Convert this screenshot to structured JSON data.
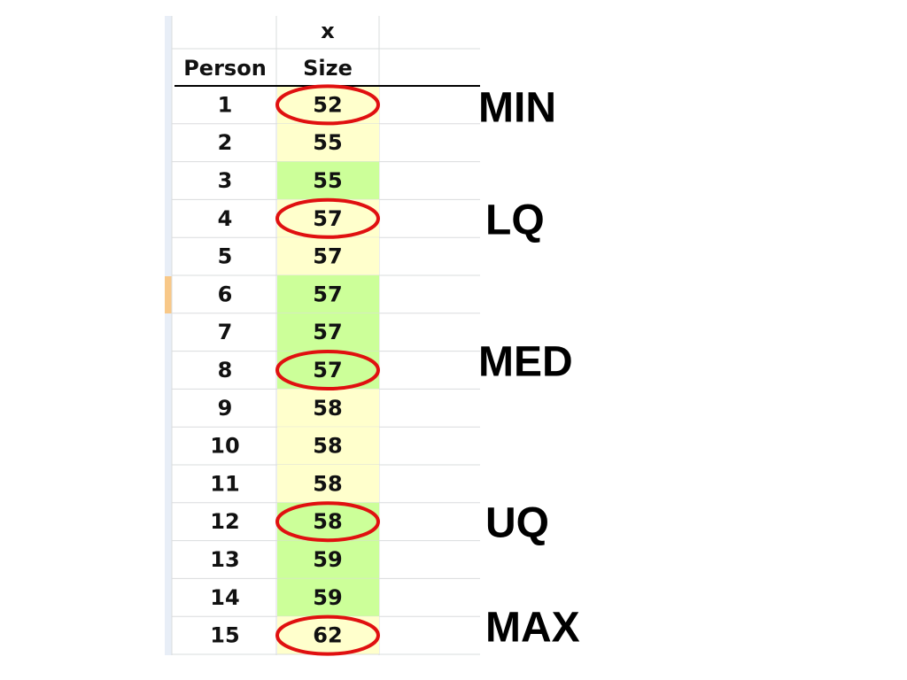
{
  "table": {
    "top_header": "x",
    "headers": [
      "Person",
      "Size"
    ],
    "rows": [
      [
        "1",
        "52"
      ],
      [
        "2",
        "55"
      ],
      [
        "3",
        "55"
      ],
      [
        "4",
        "57"
      ],
      [
        "5",
        "57"
      ],
      [
        "6",
        "57"
      ],
      [
        "7",
        "57"
      ],
      [
        "8",
        "57"
      ],
      [
        "9",
        "58"
      ],
      [
        "10",
        "58"
      ],
      [
        "11",
        "58"
      ],
      [
        "12",
        "58"
      ],
      [
        "13",
        "59"
      ],
      [
        "14",
        "59"
      ],
      [
        "15",
        "62"
      ]
    ],
    "fills": [
      "#ffffcc",
      "#ffffcc",
      "#ccff99",
      "#ffffcc",
      "#ffffcc",
      "#ccff99",
      "#ccff99",
      "#ccff99",
      "#ffffcc",
      "#ffffcc",
      "#ffffcc",
      "#ccff99",
      "#ccff99",
      "#ccff99",
      "#ffffcc"
    ]
  },
  "annotations": [
    "MIN",
    "LQ",
    "MED",
    "UQ",
    "MAX"
  ]
}
